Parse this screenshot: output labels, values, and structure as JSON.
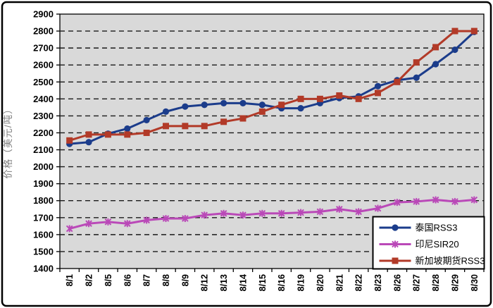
{
  "figure": {
    "background": "#ffffff",
    "plot_background": "#d9d9d9",
    "border_color": "#000000",
    "grid_color": "#1a1a1a"
  },
  "y_axis": {
    "title": "价格（美元/吨）",
    "min": 1400,
    "max": 2900,
    "step": 100,
    "tick_labels": [
      1400,
      1500,
      1600,
      1700,
      1800,
      1900,
      2000,
      2100,
      2200,
      2300,
      2400,
      2500,
      2600,
      2700,
      2800,
      2900
    ]
  },
  "chart_data": {
    "type": "line",
    "title": "",
    "xlabel": "",
    "ylabel": "价格（美元/吨）",
    "ylim": [
      1400,
      2900
    ],
    "y_step": 100,
    "grid": "horizontal-dashed",
    "legend_position": "bottom-right",
    "categories": [
      "8/1",
      "8/2",
      "8/5",
      "8/6",
      "8/7",
      "8/8",
      "8/9",
      "8/12",
      "8/13",
      "8/14",
      "8/15",
      "8/16",
      "8/19",
      "8/20",
      "8/21",
      "8/22",
      "8/23",
      "8/26",
      "8/27",
      "8/28",
      "8/29",
      "8/30"
    ],
    "series": [
      {
        "name": "泰国RSS3",
        "color": "#1b3c8b",
        "marker": "circle",
        "values": [
          2135,
          2145,
          2195,
          2225,
          2275,
          2325,
          2355,
          2365,
          2375,
          2375,
          2365,
          2345,
          2345,
          2375,
          2405,
          2415,
          2475,
          2510,
          2525,
          2605,
          2690,
          2795
        ]
      },
      {
        "name": "印尼SIR20",
        "color": "#ba49b8",
        "marker": "asterisk",
        "values": [
          1635,
          1665,
          1675,
          1665,
          1685,
          1695,
          1695,
          1715,
          1725,
          1715,
          1725,
          1725,
          1730,
          1735,
          1750,
          1735,
          1755,
          1790,
          1795,
          1805,
          1795,
          1805
        ]
      },
      {
        "name": "新加坡期货RSS3",
        "color": "#b23a28",
        "marker": "square",
        "values": [
          2155,
          2190,
          2190,
          2190,
          2200,
          2240,
          2240,
          2240,
          2265,
          2285,
          2325,
          2365,
          2400,
          2400,
          2420,
          2400,
          2435,
          2500,
          2615,
          2705,
          2800,
          2800
        ]
      }
    ]
  }
}
